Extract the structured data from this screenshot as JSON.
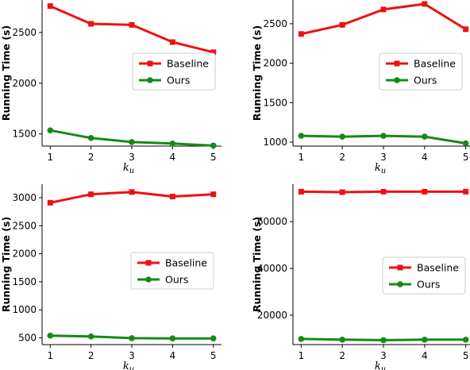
{
  "chart_data": [
    {
      "type": "line",
      "x": [
        1,
        2,
        3,
        4,
        5
      ],
      "xlabel": "k_u",
      "ylabel": "Running Time (s)",
      "ylim": [
        1380,
        2820
      ],
      "yticks": [
        1500,
        2000,
        2500
      ],
      "legend_position": "right",
      "series": [
        {
          "name": "Baseline",
          "color": "#ee1111",
          "marker": "square",
          "values": [
            2760,
            2585,
            2575,
            2405,
            2305
          ]
        },
        {
          "name": "Ours",
          "color": "#158a15",
          "marker": "circle",
          "values": [
            1535,
            1460,
            1420,
            1405,
            1385
          ]
        }
      ]
    },
    {
      "type": "line",
      "x": [
        1,
        2,
        3,
        4,
        5
      ],
      "xlabel": "k_u",
      "ylabel": "Running Time (s)",
      "ylim": [
        950,
        2800
      ],
      "yticks": [
        1000,
        1500,
        2000,
        2500
      ],
      "legend_position": "right",
      "series": [
        {
          "name": "Baseline",
          "color": "#ee1111",
          "marker": "square",
          "values": [
            2370,
            2485,
            2680,
            2750,
            2430
          ]
        },
        {
          "name": "Ours",
          "color": "#158a15",
          "marker": "circle",
          "values": [
            1080,
            1070,
            1080,
            1070,
            985
          ]
        }
      ]
    },
    {
      "type": "line",
      "x": [
        1,
        2,
        3,
        4,
        5
      ],
      "xlabel": "k_u",
      "ylabel": "Running Time (s)",
      "ylim": [
        380,
        3240
      ],
      "yticks": [
        500,
        1000,
        1500,
        2000,
        2500,
        3000
      ],
      "legend_position": "right",
      "series": [
        {
          "name": "Baseline",
          "color": "#ee1111",
          "marker": "square",
          "values": [
            2910,
            3060,
            3100,
            3020,
            3060
          ]
        },
        {
          "name": "Ours",
          "color": "#158a15",
          "marker": "circle",
          "values": [
            540,
            525,
            495,
            490,
            490
          ]
        }
      ]
    },
    {
      "type": "line",
      "x": [
        1,
        2,
        3,
        4,
        5
      ],
      "xlabel": "k_u",
      "ylabel": "Running Time (s)",
      "ylim": [
        7400,
        76000
      ],
      "yticks": [
        20000,
        40000,
        60000
      ],
      "legend_position": "right",
      "series": [
        {
          "name": "Baseline",
          "color": "#ee1111",
          "marker": "square",
          "values": [
            72800,
            72600,
            72800,
            72800,
            72800
          ]
        },
        {
          "name": "Ours",
          "color": "#158a15",
          "marker": "circle",
          "values": [
            9800,
            9500,
            9300,
            9500,
            9500
          ]
        }
      ]
    }
  ]
}
